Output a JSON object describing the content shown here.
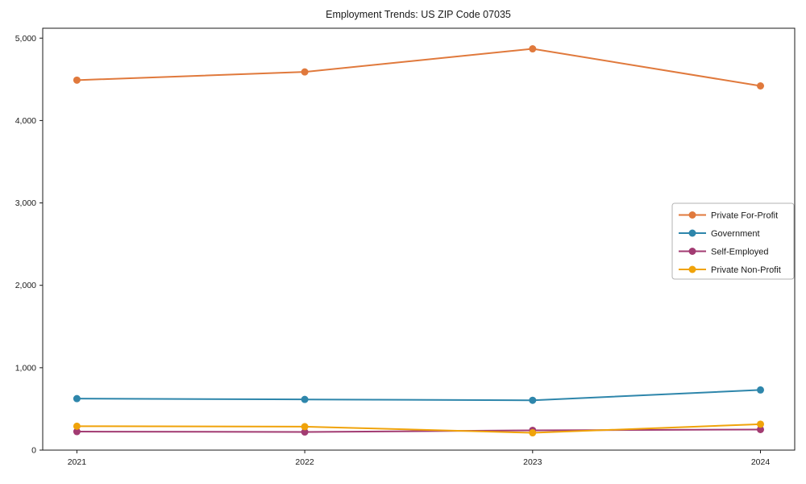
{
  "title": "Employment Trends: US ZIP Code 07035",
  "chart_data": {
    "type": "line",
    "x": [
      2021,
      2022,
      2023,
      2024
    ],
    "xtick_labels": [
      "2021",
      "2022",
      "2023",
      "2024"
    ],
    "series": [
      {
        "name": "Private For-Profit",
        "color": "#E0793C",
        "values": [
          4490,
          4590,
          4870,
          4420
        ]
      },
      {
        "name": "Government",
        "color": "#2E86AB",
        "values": [
          625,
          615,
          605,
          730
        ]
      },
      {
        "name": "Self-Employed",
        "color": "#A23B72",
        "values": [
          225,
          220,
          240,
          250
        ]
      },
      {
        "name": "Private Non-Profit",
        "color": "#F0A30A",
        "values": [
          290,
          285,
          210,
          315
        ]
      }
    ],
    "ylim": [
      0,
      5120
    ],
    "yticks": [
      0,
      1000,
      2000,
      3000,
      4000,
      5000
    ],
    "ytick_labels": [
      "0",
      "1,000",
      "2,000",
      "3,000",
      "4,000",
      "5,000"
    ],
    "grid": false,
    "marker": "circle",
    "legend_position": "center right",
    "spine_color": "#1a1a1a",
    "legend_border_color": "#b3b3b3",
    "background_color": "#ffffff"
  }
}
